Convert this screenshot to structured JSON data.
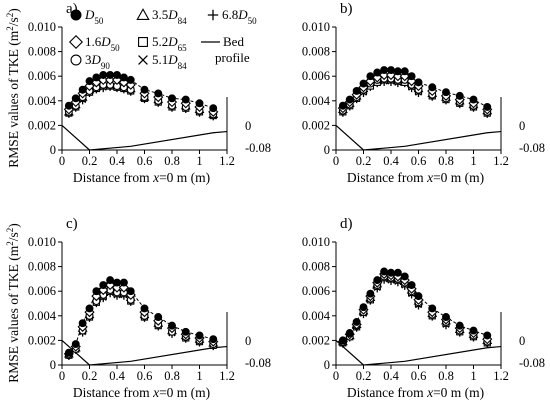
{
  "figure": {
    "ylabel": "RMSE values of  TKE (m²/s²)",
    "ylabel_parts": {
      "prefix": "RMSE values of  TKE (m",
      "sup1": "2",
      "mid": "/s",
      "sup2": "2",
      "suffix": ")"
    },
    "xlabel_parts": {
      "prefix": "Distance from ",
      "var": "x",
      "suffix": "=0 m (m)"
    },
    "right_axis_ticks": [
      "0",
      "-0.08"
    ]
  },
  "legend": [
    {
      "marker": "circle-filled",
      "base": "D",
      "sub": "50",
      "coef": ""
    },
    {
      "marker": "diamond-open",
      "base": "D",
      "sub": "50",
      "coef": "1.6"
    },
    {
      "marker": "circle-open",
      "base": "D",
      "sub": "90",
      "coef": "3"
    },
    {
      "marker": "triangle-open",
      "base": "D",
      "sub": "84",
      "coef": "3.5"
    },
    {
      "marker": "square-open",
      "base": "D",
      "sub": "65",
      "coef": "5.2"
    },
    {
      "marker": "x",
      "base": "D",
      "sub": "84",
      "coef": "5.1"
    },
    {
      "marker": "plus",
      "base": "D",
      "sub": "50",
      "coef": "6.8"
    },
    {
      "marker": "line",
      "text1": "Bed",
      "text2": "profile"
    }
  ],
  "chart_data": [
    {
      "panel": "a)",
      "type": "scatter",
      "x": [
        0.05,
        0.1,
        0.15,
        0.2,
        0.25,
        0.3,
        0.35,
        0.4,
        0.45,
        0.5,
        0.6,
        0.7,
        0.8,
        0.9,
        1.0,
        1.1
      ],
      "series": [
        {
          "marker": "circle-filled",
          "values": [
            0.0036,
            0.0042,
            0.0049,
            0.0056,
            0.0059,
            0.0061,
            0.0061,
            0.0061,
            0.0059,
            0.0057,
            0.0049,
            0.0046,
            0.0042,
            0.0041,
            0.0038,
            0.0034
          ]
        },
        {
          "marker": "diamond-open",
          "values": [
            0.0033,
            0.0039,
            0.0046,
            0.0052,
            0.0055,
            0.0057,
            0.0057,
            0.0057,
            0.0055,
            0.0053,
            0.0046,
            0.0043,
            0.0039,
            0.0038,
            0.0035,
            0.0031
          ]
        },
        {
          "marker": "circle-open",
          "values": [
            0.0031,
            0.0036,
            0.0043,
            0.0048,
            0.0051,
            0.0053,
            0.0053,
            0.0052,
            0.0051,
            0.0049,
            0.0043,
            0.004,
            0.0036,
            0.0035,
            0.0032,
            0.0029
          ]
        },
        {
          "marker": "triangle-open",
          "values": [
            0.0031,
            0.0037,
            0.0043,
            0.0049,
            0.0052,
            0.0054,
            0.0054,
            0.0053,
            0.0052,
            0.005,
            0.0043,
            0.0041,
            0.0037,
            0.0036,
            0.0033,
            0.0029
          ]
        },
        {
          "marker": "square-open",
          "values": [
            0.003,
            0.0035,
            0.0042,
            0.0047,
            0.005,
            0.0052,
            0.0052,
            0.0051,
            0.005,
            0.0048,
            0.0042,
            0.0039,
            0.0035,
            0.0034,
            0.0031,
            0.0028
          ]
        },
        {
          "marker": "x",
          "values": [
            0.003,
            0.0035,
            0.0041,
            0.0047,
            0.005,
            0.0051,
            0.0052,
            0.0051,
            0.005,
            0.0048,
            0.0042,
            0.0039,
            0.0035,
            0.0034,
            0.0031,
            0.0028
          ]
        },
        {
          "marker": "plus",
          "values": [
            0.0029,
            0.0034,
            0.004,
            0.0046,
            0.0049,
            0.005,
            0.0051,
            0.005,
            0.0049,
            0.0047,
            0.0041,
            0.0038,
            0.0034,
            0.0033,
            0.003,
            0.0027
          ]
        }
      ],
      "bed_profile": {
        "x": [
          0,
          0.2,
          0.5,
          1.1,
          1.2
        ],
        "y": [
          0.002,
          0,
          0.0003,
          0.0014,
          0.0015
        ]
      },
      "xlim": [
        0,
        1.2
      ],
      "ylim": [
        0,
        0.01
      ],
      "xticks": [
        "0",
        "0.2",
        "0.4",
        "0.6",
        "0.8",
        "1",
        "1.2"
      ],
      "yticks": [
        "0",
        "0.002",
        "0.004",
        "0.006",
        "0.008",
        "0.010"
      ]
    },
    {
      "panel": "b)",
      "type": "scatter",
      "x": [
        0.05,
        0.1,
        0.15,
        0.2,
        0.25,
        0.3,
        0.35,
        0.4,
        0.45,
        0.5,
        0.55,
        0.6,
        0.7,
        0.8,
        0.9,
        1.0,
        1.1
      ],
      "series": [
        {
          "marker": "circle-filled",
          "values": [
            0.0036,
            0.0041,
            0.0048,
            0.0054,
            0.006,
            0.0063,
            0.0065,
            0.0065,
            0.0064,
            0.0064,
            0.006,
            0.0055,
            0.0051,
            0.0047,
            0.0044,
            0.0041,
            0.0035
          ]
        },
        {
          "marker": "diamond-open",
          "values": [
            0.0034,
            0.0039,
            0.0045,
            0.0051,
            0.0056,
            0.0059,
            0.0061,
            0.0061,
            0.006,
            0.006,
            0.0056,
            0.0052,
            0.0048,
            0.0044,
            0.0041,
            0.0038,
            0.0033
          ]
        },
        {
          "marker": "circle-open",
          "values": [
            0.0032,
            0.0037,
            0.0043,
            0.0049,
            0.0054,
            0.0057,
            0.0058,
            0.0058,
            0.0057,
            0.0057,
            0.0053,
            0.0049,
            0.0045,
            0.0042,
            0.0039,
            0.0036,
            0.0031
          ]
        },
        {
          "marker": "triangle-open",
          "values": [
            0.0033,
            0.0038,
            0.0044,
            0.005,
            0.0055,
            0.0058,
            0.0059,
            0.0059,
            0.0058,
            0.0058,
            0.0054,
            0.005,
            0.0046,
            0.0043,
            0.004,
            0.0037,
            0.0032
          ]
        },
        {
          "marker": "square-open",
          "values": [
            0.0031,
            0.0036,
            0.0042,
            0.0048,
            0.0052,
            0.0055,
            0.0057,
            0.0057,
            0.0056,
            0.0055,
            0.0052,
            0.0048,
            0.0044,
            0.0041,
            0.0038,
            0.0035,
            0.003
          ]
        },
        {
          "marker": "x",
          "values": [
            0.0031,
            0.0036,
            0.0042,
            0.0047,
            0.0052,
            0.0055,
            0.0056,
            0.0056,
            0.0055,
            0.0055,
            0.0051,
            0.0047,
            0.0044,
            0.0041,
            0.0038,
            0.0035,
            0.003
          ]
        },
        {
          "marker": "plus",
          "values": [
            0.003,
            0.0035,
            0.0041,
            0.0046,
            0.0051,
            0.0054,
            0.0055,
            0.0055,
            0.0054,
            0.0054,
            0.005,
            0.0046,
            0.0043,
            0.004,
            0.0037,
            0.0034,
            0.0029
          ]
        }
      ],
      "bed_profile": {
        "x": [
          0,
          0.2,
          0.5,
          1.1,
          1.2
        ],
        "y": [
          0.002,
          0,
          0.0003,
          0.0014,
          0.0015
        ]
      },
      "xlim": [
        0,
        1.2
      ],
      "ylim": [
        0,
        0.01
      ],
      "xticks": [
        "0",
        "0.2",
        "0.4",
        "0.6",
        "0.8",
        "1",
        "1.2"
      ],
      "yticks": [
        "0",
        "0.002",
        "0.004",
        "0.006",
        "0.008",
        "0.010"
      ]
    },
    {
      "panel": "c)",
      "type": "scatter",
      "x": [
        0.05,
        0.1,
        0.15,
        0.2,
        0.25,
        0.3,
        0.35,
        0.4,
        0.45,
        0.5,
        0.6,
        0.7,
        0.8,
        0.9,
        1.0,
        1.1
      ],
      "series": [
        {
          "marker": "circle-filled",
          "values": [
            0.001,
            0.0017,
            0.0034,
            0.0046,
            0.006,
            0.0065,
            0.0069,
            0.0067,
            0.0067,
            0.006,
            0.0046,
            0.0039,
            0.0032,
            0.0027,
            0.0024,
            0.0021
          ]
        },
        {
          "marker": "diamond-open",
          "values": [
            0.0009,
            0.0015,
            0.0031,
            0.0043,
            0.0056,
            0.0061,
            0.0065,
            0.0063,
            0.0063,
            0.0057,
            0.0043,
            0.0036,
            0.003,
            0.0025,
            0.0022,
            0.0019
          ]
        },
        {
          "marker": "circle-open",
          "values": [
            0.0008,
            0.0013,
            0.0028,
            0.004,
            0.0052,
            0.0057,
            0.0061,
            0.0059,
            0.0059,
            0.0053,
            0.004,
            0.0033,
            0.0027,
            0.0023,
            0.002,
            0.0017
          ]
        },
        {
          "marker": "triangle-open",
          "values": [
            0.0009,
            0.0014,
            0.003,
            0.0041,
            0.0054,
            0.0059,
            0.0063,
            0.0061,
            0.0061,
            0.0055,
            0.0041,
            0.0034,
            0.0028,
            0.0024,
            0.0021,
            0.0018
          ]
        },
        {
          "marker": "square-open",
          "values": [
            0.0008,
            0.0013,
            0.0028,
            0.0039,
            0.0051,
            0.0056,
            0.006,
            0.0058,
            0.0058,
            0.0052,
            0.0039,
            0.0032,
            0.0027,
            0.0022,
            0.0019,
            0.0016
          ]
        },
        {
          "marker": "x",
          "values": [
            0.0008,
            0.0013,
            0.0027,
            0.0039,
            0.0051,
            0.0055,
            0.0059,
            0.0057,
            0.0057,
            0.0052,
            0.0039,
            0.0032,
            0.0026,
            0.0022,
            0.0019,
            0.0016
          ]
        },
        {
          "marker": "plus",
          "values": [
            0.0007,
            0.0012,
            0.0026,
            0.0038,
            0.005,
            0.0054,
            0.0058,
            0.0056,
            0.0056,
            0.0051,
            0.0038,
            0.0031,
            0.0025,
            0.0021,
            0.0018,
            0.0015
          ]
        }
      ],
      "bed_profile": {
        "x": [
          0,
          0.2,
          0.5,
          1.1,
          1.2
        ],
        "y": [
          0.002,
          0,
          0.0003,
          0.0014,
          0.0015
        ]
      },
      "xlim": [
        0,
        1.2
      ],
      "ylim": [
        0,
        0.01
      ],
      "xticks": [
        "0",
        "0.2",
        "0.4",
        "0.6",
        "0.8",
        "1",
        "1.2"
      ],
      "yticks": [
        "0",
        "0.002",
        "0.004",
        "0.006",
        "0.008",
        "0.010"
      ]
    },
    {
      "panel": "d)",
      "type": "scatter",
      "x": [
        0.05,
        0.1,
        0.15,
        0.2,
        0.25,
        0.3,
        0.35,
        0.4,
        0.45,
        0.5,
        0.55,
        0.6,
        0.7,
        0.8,
        0.9,
        1.0,
        1.1
      ],
      "series": [
        {
          "marker": "circle-filled",
          "values": [
            0.002,
            0.0026,
            0.0035,
            0.0047,
            0.0058,
            0.0069,
            0.0076,
            0.0075,
            0.0075,
            0.0072,
            0.0065,
            0.0056,
            0.0046,
            0.0039,
            0.0032,
            0.0028,
            0.0024
          ]
        },
        {
          "marker": "diamond-open",
          "values": [
            0.0019,
            0.0025,
            0.0033,
            0.0045,
            0.0056,
            0.0067,
            0.0074,
            0.0073,
            0.0072,
            0.0069,
            0.0062,
            0.0053,
            0.0043,
            0.0037,
            0.003,
            0.0026,
            0.0021
          ]
        },
        {
          "marker": "circle-open",
          "values": [
            0.0018,
            0.0023,
            0.0032,
            0.0043,
            0.0054,
            0.0065,
            0.0072,
            0.0071,
            0.007,
            0.0067,
            0.006,
            0.0051,
            0.0041,
            0.0035,
            0.0028,
            0.0024,
            0.0019
          ]
        },
        {
          "marker": "triangle-open",
          "values": [
            0.0019,
            0.0024,
            0.0033,
            0.0044,
            0.0055,
            0.0066,
            0.0073,
            0.0072,
            0.0071,
            0.0068,
            0.0061,
            0.0052,
            0.0042,
            0.0036,
            0.0029,
            0.0025,
            0.002
          ]
        },
        {
          "marker": "square-open",
          "values": [
            0.0018,
            0.0023,
            0.0031,
            0.0043,
            0.0053,
            0.0064,
            0.0071,
            0.007,
            0.0069,
            0.0066,
            0.0059,
            0.005,
            0.004,
            0.0034,
            0.0027,
            0.0023,
            0.0018
          ]
        },
        {
          "marker": "x",
          "values": [
            0.0018,
            0.0023,
            0.0031,
            0.0042,
            0.0053,
            0.0063,
            0.007,
            0.0069,
            0.0068,
            0.0065,
            0.0058,
            0.0049,
            0.004,
            0.0033,
            0.0027,
            0.0023,
            0.0018
          ]
        },
        {
          "marker": "plus",
          "values": [
            0.0017,
            0.0022,
            0.003,
            0.0041,
            0.0052,
            0.0062,
            0.0069,
            0.0068,
            0.0067,
            0.0064,
            0.0057,
            0.0048,
            0.0039,
            0.0032,
            0.0026,
            0.0022,
            0.0017
          ]
        }
      ],
      "bed_profile": {
        "x": [
          0,
          0.2,
          0.5,
          1.1,
          1.2
        ],
        "y": [
          0.002,
          0,
          0.0003,
          0.0014,
          0.0015
        ]
      },
      "xlim": [
        0,
        1.2
      ],
      "ylim": [
        0,
        0.01
      ],
      "xticks": [
        "0",
        "0.2",
        "0.4",
        "0.6",
        "0.8",
        "1",
        "1.2"
      ],
      "yticks": [
        "0",
        "0.002",
        "0.004",
        "0.006",
        "0.008",
        "0.010"
      ]
    }
  ]
}
